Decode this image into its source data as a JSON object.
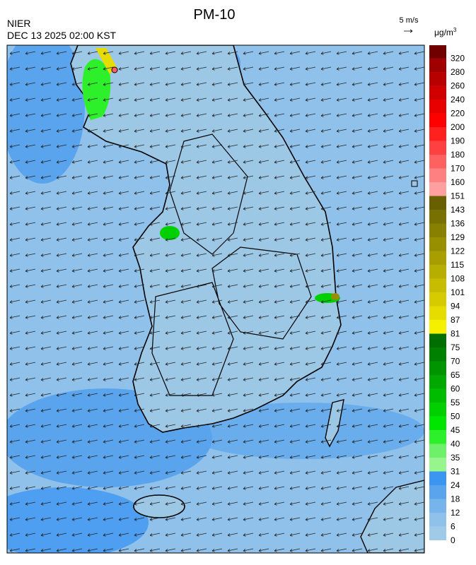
{
  "header": {
    "title": "PM-10",
    "source": "NIER",
    "datetime": "DEC 13 2025 02:00 KST",
    "wind_scale": "5 m/s"
  },
  "colorbar": {
    "unit": "μg/m",
    "unit_sup": "3",
    "labels": [
      0,
      6,
      12,
      18,
      24,
      31,
      35,
      40,
      45,
      50,
      55,
      60,
      65,
      70,
      75,
      81,
      87,
      94,
      101,
      108,
      115,
      122,
      129,
      136,
      143,
      151,
      160,
      170,
      180,
      190,
      200,
      220,
      240,
      260,
      280,
      320
    ],
    "colors": [
      "#a0cbe8",
      "#8fc1ea",
      "#78b4ec",
      "#5aa4ee",
      "#3d95f2",
      "#96f58c",
      "#6ff06a",
      "#2ef02a",
      "#00e600",
      "#00d000",
      "#00bc00",
      "#00a800",
      "#009400",
      "#008000",
      "#006e00",
      "#f5f000",
      "#e6dc00",
      "#d6ca00",
      "#c8bc00",
      "#b8ae00",
      "#a89e00",
      "#988f00",
      "#888000",
      "#787000",
      "#686000",
      "#ffa0a0",
      "#ff8080",
      "#ff6060",
      "#ff4040",
      "#ff2020",
      "#ff0000",
      "#e80000",
      "#d00000",
      "#b80000",
      "#a00000",
      "#700000"
    ]
  }
}
